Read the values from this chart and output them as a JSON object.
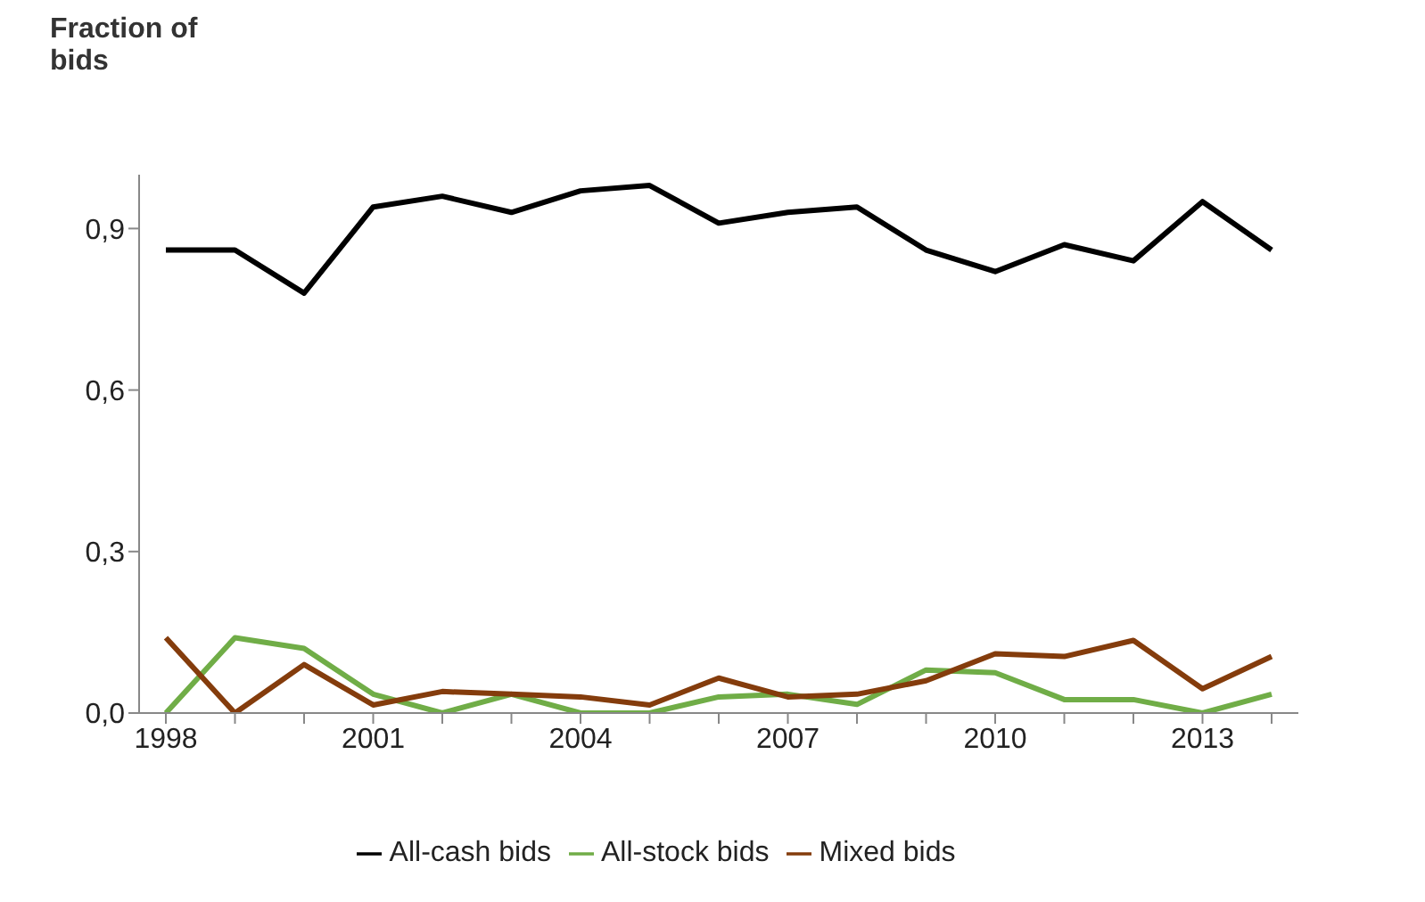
{
  "chart_data": {
    "type": "line",
    "ylabel": "Fraction of bids",
    "categories": [
      "1998",
      null,
      null,
      "2001",
      null,
      null,
      "2004",
      null,
      null,
      "2007",
      null,
      null,
      "2010",
      null,
      null,
      "2013",
      null
    ],
    "series": [
      {
        "name": "All-cash bids",
        "color": "#000000",
        "values": [
          0.86,
          0.86,
          0.78,
          0.94,
          0.96,
          0.93,
          0.97,
          0.98,
          0.91,
          0.93,
          0.94,
          0.86,
          0.82,
          0.87,
          0.84,
          0.95,
          0.86
        ]
      },
      {
        "name": "All-stock bids",
        "color": "#70ad47",
        "values": [
          0,
          0.14,
          0.12,
          0.035,
          0,
          0.035,
          0,
          0,
          0.03,
          0.035,
          0.016,
          0.08,
          0.075,
          0.025,
          0.025,
          0,
          0.035
        ]
      },
      {
        "name": "Mixed bids",
        "color": "#843c0c",
        "values": [
          0.14,
          0,
          0.09,
          0.015,
          0.04,
          0.035,
          0.03,
          0.015,
          0.065,
          0.03,
          0.035,
          0.06,
          0.11,
          0.105,
          0.135,
          0.045,
          0.105
        ]
      }
    ],
    "ylim": [
      0,
      1
    ],
    "yticks": [
      {
        "value": 0,
        "label": "0,0"
      },
      {
        "value": 0.3,
        "label": "0,3"
      },
      {
        "value": 0.6,
        "label": "0,6"
      },
      {
        "value": 0.9,
        "label": "0,9"
      }
    ],
    "grid": false,
    "legend": "bottom",
    "marker": "none",
    "line_style": "solid"
  }
}
